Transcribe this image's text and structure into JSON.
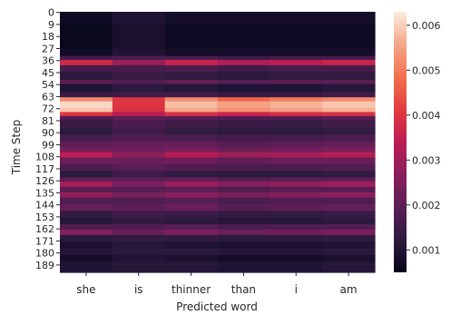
{
  "chart_data": {
    "type": "heatmap",
    "title": "",
    "xlabel": "Predicted word",
    "ylabel": "Time Step",
    "x_categories": [
      "she",
      "is",
      "thinner",
      "than",
      "i",
      "am"
    ],
    "y_tick_labels": [
      "0",
      "9",
      "18",
      "27",
      "36",
      "45",
      "54",
      "63",
      "72",
      "81",
      "90",
      "99",
      "108",
      "117",
      "126",
      "135",
      "144",
      "153",
      "162",
      "171",
      "180",
      "189"
    ],
    "y_range": [
      0,
      195
    ],
    "colorbar": {
      "min": 0.0005,
      "max": 0.0063,
      "ticks": [
        0.001,
        0.002,
        0.003,
        0.004,
        0.005,
        0.006
      ],
      "tick_labels": [
        "0.001",
        "0.002",
        "0.003",
        "0.004",
        "0.005",
        "0.006"
      ],
      "colormap": "rocket"
    },
    "rows": [
      {
        "t": 0,
        "v": [
          0.0007,
          0.001,
          0.0008,
          0.0008,
          0.0008,
          0.0008
        ]
      },
      {
        "t": 9,
        "v": [
          0.0006,
          0.0009,
          0.0007,
          0.0007,
          0.0007,
          0.0007
        ]
      },
      {
        "t": 18,
        "v": [
          0.0006,
          0.0009,
          0.0007,
          0.0007,
          0.0007,
          0.0007
        ]
      },
      {
        "t": 27,
        "v": [
          0.0007,
          0.001,
          0.0008,
          0.0008,
          0.0008,
          0.0008
        ]
      },
      {
        "t": 33,
        "v": [
          0.0016,
          0.0017,
          0.0017,
          0.0015,
          0.0016,
          0.0016
        ]
      },
      {
        "t": 36,
        "v": [
          0.0037,
          0.0029,
          0.0036,
          0.0032,
          0.0034,
          0.0036
        ]
      },
      {
        "t": 40,
        "v": [
          0.0016,
          0.0016,
          0.0017,
          0.0015,
          0.0016,
          0.0016
        ]
      },
      {
        "t": 45,
        "v": [
          0.0012,
          0.0014,
          0.0013,
          0.0012,
          0.0013,
          0.0013
        ]
      },
      {
        "t": 51,
        "v": [
          0.002,
          0.0018,
          0.0021,
          0.0019,
          0.002,
          0.002
        ]
      },
      {
        "t": 54,
        "v": [
          0.001,
          0.0012,
          0.0011,
          0.001,
          0.001,
          0.0011
        ]
      },
      {
        "t": 60,
        "v": [
          0.0014,
          0.0015,
          0.0015,
          0.0014,
          0.0014,
          0.0015
        ]
      },
      {
        "t": 64,
        "v": [
          0.0052,
          0.004,
          0.0052,
          0.0047,
          0.005,
          0.0052
        ]
      },
      {
        "t": 67,
        "v": [
          0.0061,
          0.004,
          0.0058,
          0.0055,
          0.0057,
          0.0059
        ]
      },
      {
        "t": 72,
        "v": [
          0.0059,
          0.0039,
          0.0056,
          0.0053,
          0.0055,
          0.0057
        ]
      },
      {
        "t": 75,
        "v": [
          0.004,
          0.0033,
          0.0039,
          0.0036,
          0.0038,
          0.0039
        ]
      },
      {
        "t": 78,
        "v": [
          0.0018,
          0.002,
          0.0019,
          0.0018,
          0.0018,
          0.0019
        ]
      },
      {
        "t": 81,
        "v": [
          0.0014,
          0.0017,
          0.0015,
          0.0014,
          0.0014,
          0.0015
        ]
      },
      {
        "t": 87,
        "v": [
          0.0012,
          0.0015,
          0.0013,
          0.0012,
          0.0012,
          0.0013
        ]
      },
      {
        "t": 92,
        "v": [
          0.0016,
          0.0018,
          0.0017,
          0.0016,
          0.0016,
          0.0017
        ]
      },
      {
        "t": 97,
        "v": [
          0.002,
          0.0021,
          0.0021,
          0.0019,
          0.002,
          0.0021
        ]
      },
      {
        "t": 101,
        "v": [
          0.0023,
          0.0023,
          0.0024,
          0.0022,
          0.0023,
          0.0024
        ]
      },
      {
        "t": 105,
        "v": [
          0.0034,
          0.0027,
          0.0033,
          0.003,
          0.0031,
          0.0033
        ]
      },
      {
        "t": 109,
        "v": [
          0.0022,
          0.0022,
          0.0023,
          0.0021,
          0.0022,
          0.0022
        ]
      },
      {
        "t": 114,
        "v": [
          0.0017,
          0.0019,
          0.0018,
          0.0017,
          0.0017,
          0.0018
        ]
      },
      {
        "t": 119,
        "v": [
          0.0012,
          0.0015,
          0.0013,
          0.0012,
          0.0012,
          0.0013
        ]
      },
      {
        "t": 124,
        "v": [
          0.002,
          0.002,
          0.0021,
          0.0019,
          0.002,
          0.002
        ]
      },
      {
        "t": 127,
        "v": [
          0.0031,
          0.0025,
          0.0029,
          0.0026,
          0.0028,
          0.003
        ]
      },
      {
        "t": 131,
        "v": [
          0.0019,
          0.0019,
          0.002,
          0.0018,
          0.0019,
          0.0019
        ]
      },
      {
        "t": 135,
        "v": [
          0.0028,
          0.0024,
          0.0027,
          0.0024,
          0.0026,
          0.0027
        ]
      },
      {
        "t": 139,
        "v": [
          0.0018,
          0.0018,
          0.0019,
          0.0017,
          0.0018,
          0.0018
        ]
      },
      {
        "t": 144,
        "v": [
          0.0021,
          0.002,
          0.0022,
          0.0019,
          0.002,
          0.0021
        ]
      },
      {
        "t": 149,
        "v": [
          0.0013,
          0.0015,
          0.0014,
          0.0013,
          0.0013,
          0.0014
        ]
      },
      {
        "t": 154,
        "v": [
          0.0011,
          0.0013,
          0.0012,
          0.0011,
          0.0011,
          0.0012
        ]
      },
      {
        "t": 159,
        "v": [
          0.0018,
          0.0018,
          0.0019,
          0.0017,
          0.0018,
          0.0018
        ]
      },
      {
        "t": 163,
        "v": [
          0.0026,
          0.0022,
          0.0025,
          0.0022,
          0.0023,
          0.0025
        ]
      },
      {
        "t": 167,
        "v": [
          0.0012,
          0.0013,
          0.0013,
          0.0012,
          0.0012,
          0.0013
        ]
      },
      {
        "t": 172,
        "v": [
          0.0009,
          0.0011,
          0.001,
          0.0009,
          0.0009,
          0.001
        ]
      },
      {
        "t": 177,
        "v": [
          0.0011,
          0.0012,
          0.0012,
          0.0011,
          0.0011,
          0.0012
        ]
      },
      {
        "t": 182,
        "v": [
          0.0008,
          0.001,
          0.0009,
          0.0008,
          0.0008,
          0.0009
        ]
      },
      {
        "t": 187,
        "v": [
          0.001,
          0.0011,
          0.0011,
          0.001,
          0.001,
          0.0011
        ]
      }
    ]
  }
}
